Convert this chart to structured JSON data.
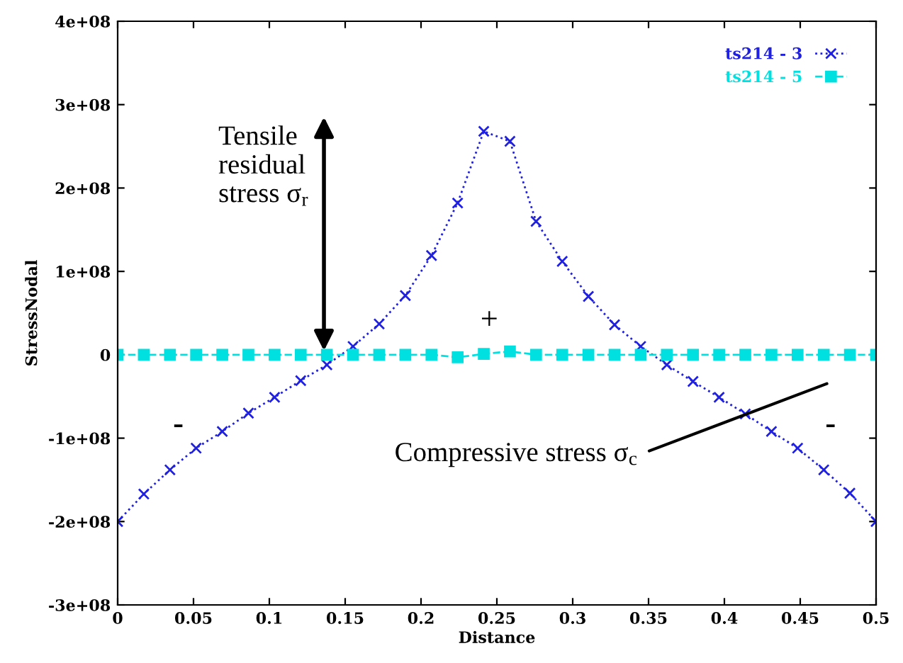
{
  "chart_data": {
    "type": "line",
    "xlabel": "Distance",
    "ylabel": "StressNodal",
    "x": [
      0,
      0.01724,
      0.03448,
      0.05172,
      0.06897,
      0.08621,
      0.10345,
      0.12069,
      0.13793,
      0.15517,
      0.17241,
      0.18966,
      0.2069,
      0.22414,
      0.24138,
      0.25862,
      0.27586,
      0.2931,
      0.31034,
      0.32759,
      0.34483,
      0.36207,
      0.37931,
      0.39655,
      0.41379,
      0.43103,
      0.44828,
      0.46552,
      0.48276,
      0.5
    ],
    "series": [
      {
        "name": "ts214 - 3",
        "color": "#2020e0",
        "marker": "cross",
        "line_style": "dotted",
        "values": [
          -200000000,
          -167000000,
          -138000000,
          -112000000,
          -92000000,
          -70000000,
          -51000000,
          -31000000,
          -12000000,
          10000000,
          37000000,
          71000000,
          119000000,
          182000000,
          268000000,
          256000000,
          160000000,
          112000000,
          70000000,
          36000000,
          10000000,
          -12000000,
          -32000000,
          -51000000,
          -71000000,
          -92000000,
          -112000000,
          -138000000,
          -166000000,
          -200000000
        ]
      },
      {
        "name": "ts214 - 5",
        "color": "#00e0e0",
        "marker": "square",
        "line_style": "dashed",
        "values": [
          0,
          0,
          0,
          0,
          0,
          0,
          0,
          0,
          0,
          0,
          0,
          0,
          0,
          -3000000,
          1000000,
          4000000,
          0,
          0,
          0,
          0,
          0,
          0,
          0,
          0,
          0,
          0,
          0,
          0,
          0,
          0
        ]
      }
    ],
    "xlim": [
      0,
      0.5
    ],
    "xticks": [
      0,
      0.05,
      0.1,
      0.15,
      0.2,
      0.25,
      0.3,
      0.35,
      0.4,
      0.45,
      0.5
    ],
    "ylim": [
      -300000000,
      400000000
    ],
    "yticks": [
      {
        "value": -300000000,
        "label": "-3e+08"
      },
      {
        "value": -200000000,
        "label": "-2e+08"
      },
      {
        "value": -100000000,
        "label": "-1e+08"
      },
      0,
      {
        "value": 100000000,
        "label": "1e+08"
      },
      {
        "value": 200000000,
        "label": "2e+08"
      },
      {
        "value": 300000000,
        "label": "3e+08"
      },
      {
        "value": 400000000,
        "label": "4e+08"
      }
    ],
    "legend": "top right",
    "grid": false,
    "annotations": [
      "Tensile\nresidual\nstress σ$_{r}$",
      "+",
      "-",
      "-",
      "Compressive stress σ$_{c}$"
    ]
  }
}
